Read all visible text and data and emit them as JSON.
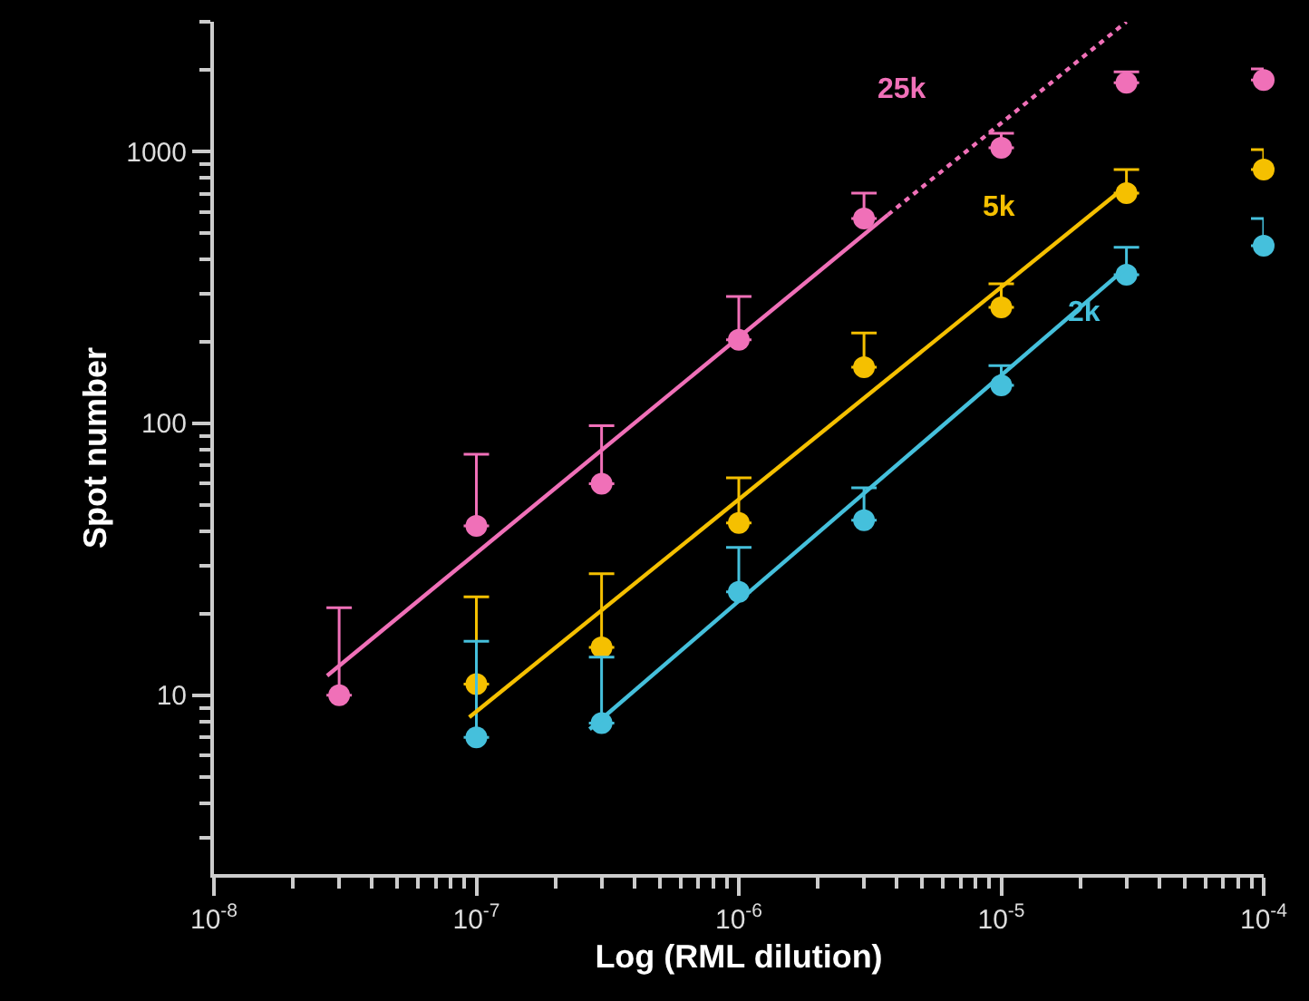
{
  "chart_data": {
    "type": "scatter",
    "xlabel": "Log (RML dilution)",
    "ylabel": "Spot number",
    "log": "xy",
    "grid": false,
    "marker": "circle",
    "legend": false,
    "xlim": [
      1e-08,
      0.0001
    ],
    "ylim": [
      2.2,
      3000
    ],
    "xticks": [
      {
        "value": 1e-08,
        "label": "10$^{-8}$"
      },
      {
        "value": 1e-07,
        "label": "10$^{-7}$"
      },
      {
        "value": 1e-06,
        "label": "10$^{-6}$"
      },
      {
        "value": 1e-05,
        "label": "10$^{-5}$"
      },
      {
        "value": 0.0001,
        "label": "10$^{-4}$"
      },
      {
        "value": 2e-08,
        "label": null
      },
      {
        "value": 3e-08,
        "label": null
      },
      {
        "value": 4e-08,
        "label": null
      },
      {
        "value": 5e-08,
        "label": null
      },
      {
        "value": 6e-08,
        "label": null
      },
      {
        "value": 7e-08,
        "label": null
      },
      {
        "value": 8e-08,
        "label": null
      },
      {
        "value": 9e-08,
        "label": null
      },
      {
        "value": 2e-07,
        "label": null
      },
      {
        "value": 3e-07,
        "label": null
      },
      {
        "value": 4e-07,
        "label": null
      },
      {
        "value": 5e-07,
        "label": null
      },
      {
        "value": 6e-07,
        "label": null
      },
      {
        "value": 7e-07,
        "label": null
      },
      {
        "value": 8e-07,
        "label": null
      },
      {
        "value": 9e-07,
        "label": null
      },
      {
        "value": 2e-06,
        "label": null
      },
      {
        "value": 3e-06,
        "label": null
      },
      {
        "value": 4e-06,
        "label": null
      },
      {
        "value": 5e-06,
        "label": null
      },
      {
        "value": 6e-06,
        "label": null
      },
      {
        "value": 7e-06,
        "label": null
      },
      {
        "value": 8e-06,
        "label": null
      },
      {
        "value": 9e-06,
        "label": null
      },
      {
        "value": 2e-05,
        "label": null
      },
      {
        "value": 3e-05,
        "label": null
      },
      {
        "value": 4e-05,
        "label": null
      },
      {
        "value": 5e-05,
        "label": null
      },
      {
        "value": 6e-05,
        "label": null
      },
      {
        "value": 7e-05,
        "label": null
      },
      {
        "value": 8e-05,
        "label": null
      },
      {
        "value": 9e-05,
        "label": null
      }
    ],
    "yticks": [
      10,
      100,
      1000,
      {
        "value": 3,
        "label": null
      },
      {
        "value": 4,
        "label": null
      },
      {
        "value": 5,
        "label": null
      },
      {
        "value": 6,
        "label": null
      },
      {
        "value": 7,
        "label": null
      },
      {
        "value": 8,
        "label": null
      },
      {
        "value": 9,
        "label": null
      },
      {
        "value": 20,
        "label": null
      },
      {
        "value": 30,
        "label": null
      },
      {
        "value": 40,
        "label": null
      },
      {
        "value": 50,
        "label": null
      },
      {
        "value": 60,
        "label": null
      },
      {
        "value": 70,
        "label": null
      },
      {
        "value": 80,
        "label": null
      },
      {
        "value": 90,
        "label": null
      },
      {
        "value": 200,
        "label": null
      },
      {
        "value": 300,
        "label": null
      },
      {
        "value": 400,
        "label": null
      },
      {
        "value": 500,
        "label": null
      },
      {
        "value": 600,
        "label": null
      },
      {
        "value": 700,
        "label": null
      },
      {
        "value": 800,
        "label": null
      },
      {
        "value": 900,
        "label": null
      },
      {
        "value": 2000,
        "label": null
      },
      {
        "value": 3000,
        "label": null
      }
    ],
    "series": [
      {
        "name": "25k",
        "color": "#f070b8",
        "x": [
          3e-08,
          1e-07,
          3e-07,
          1e-06,
          3e-06,
          1e-05,
          3e-05,
          0.0001
        ],
        "values": [
          10,
          42,
          60,
          203,
          567,
          1031,
          1791,
          1832
        ],
        "errors": [
          [
            10,
            21
          ],
          [
            42,
            77
          ],
          [
            60,
            98
          ],
          [
            203,
            293
          ],
          [
            567,
            703
          ],
          [
            1031,
            1166
          ],
          [
            1791,
            1963
          ],
          [
            1832,
            2013
          ]
        ]
      },
      {
        "name": "5k",
        "color": "#f5c000",
        "x": [
          1e-07,
          3e-07,
          1e-06,
          3e-06,
          1e-05,
          3e-05,
          0.0001
        ],
        "values": [
          11,
          15,
          43,
          161,
          267,
          703,
          858
        ],
        "errors": [
          [
            11,
            23
          ],
          [
            15,
            28
          ],
          [
            43,
            63
          ],
          [
            161,
            215
          ],
          [
            267,
            326
          ],
          [
            703,
            858
          ],
          [
            858,
            1016
          ]
        ]
      },
      {
        "name": "2k",
        "color": "#45c0dc",
        "x": [
          1e-07,
          3e-07,
          1e-06,
          3e-06,
          1e-05,
          3e-05,
          0.0001
        ],
        "values": [
          7,
          7.9,
          24,
          44,
          138,
          352,
          450
        ],
        "errors": [
          [
            7,
            15.8
          ],
          [
            7.9,
            13.8
          ],
          [
            24,
            35
          ],
          [
            44,
            58
          ],
          [
            138,
            163
          ],
          [
            352,
            444
          ],
          [
            450,
            567
          ]
        ]
      },
      {
        "type": "line",
        "marker": "none",
        "color": "#f070b8",
        "line_style": "solid",
        "x": [
          2.7e-08,
          3.7e-06
        ],
        "values": [
          11.8,
          585
        ]
      },
      {
        "type": "line",
        "marker": "none",
        "color": "#f070b8",
        "line_style": "dotted",
        "x": [
          3.7e-06,
          3e-05
        ],
        "values": [
          585,
          3000
        ]
      },
      {
        "type": "line",
        "marker": "none",
        "color": "#f5c000",
        "line_style": "solid",
        "x": [
          9.4e-08,
          3e-05
        ],
        "values": [
          8.3,
          747
        ]
      },
      {
        "type": "line",
        "marker": "none",
        "color": "#45c0dc",
        "line_style": "solid",
        "x": [
          2.7e-07,
          3e-05
        ],
        "values": [
          7.5,
          374
        ]
      }
    ]
  }
}
